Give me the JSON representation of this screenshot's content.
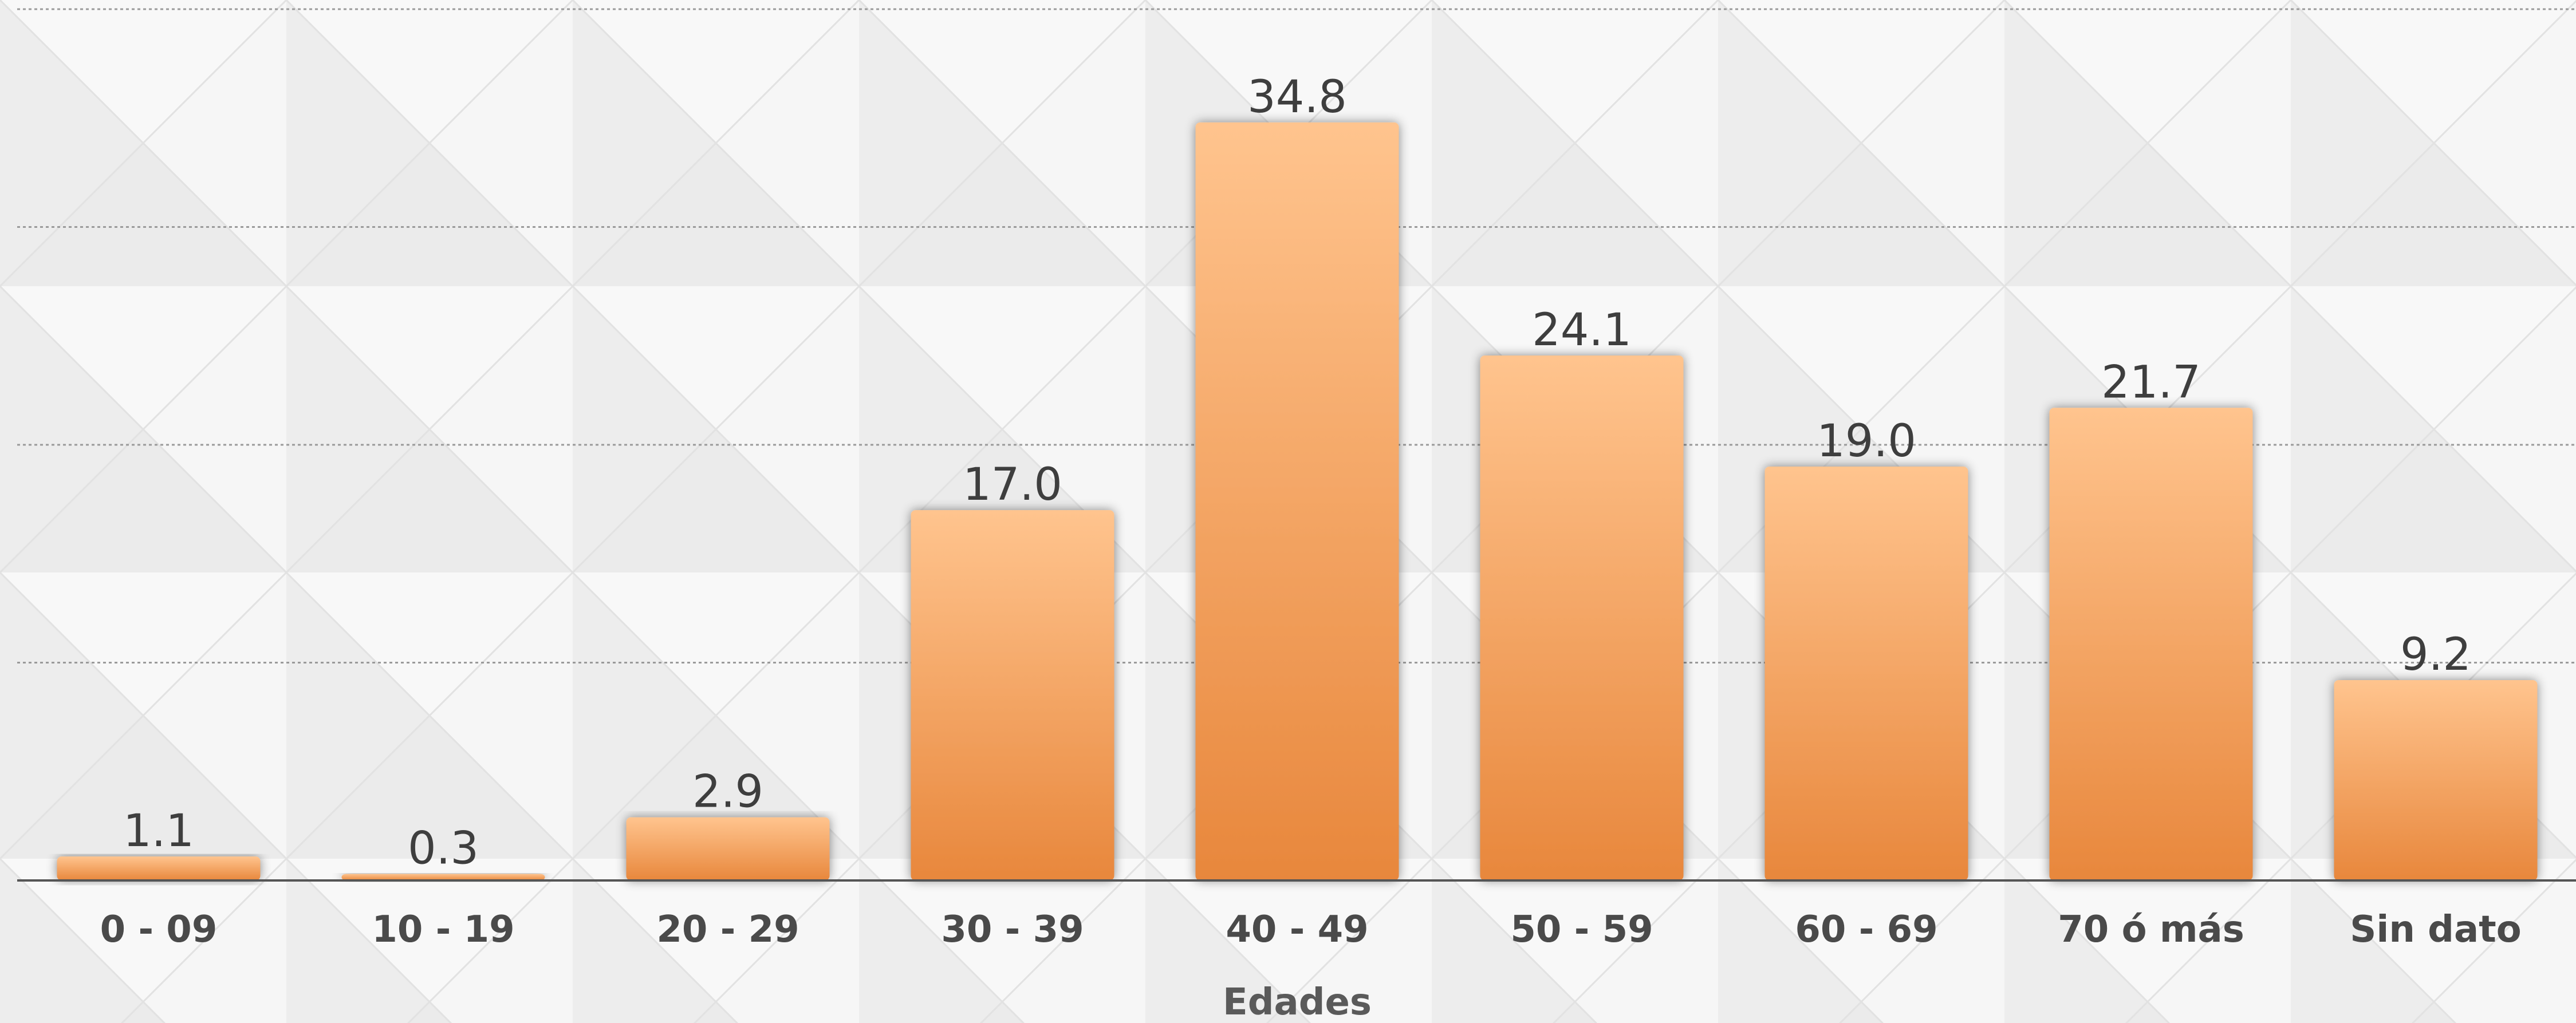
{
  "chart_data": {
    "type": "bar",
    "title": "",
    "xlabel": "Edades",
    "ylabel": "",
    "categories": [
      "0 - 09",
      "10 - 19",
      "20 - 29",
      "30 - 39",
      "40 - 49",
      "50 - 59",
      "60 - 69",
      "70 ó más",
      "Sin dato"
    ],
    "values": [
      1.1,
      0.3,
      2.9,
      17.0,
      34.8,
      24.1,
      19.0,
      21.7,
      9.2
    ],
    "value_labels": [
      "1.1",
      "0.3",
      "2.9",
      "17.0",
      "34.8",
      "24.1",
      "19.0",
      "21.7",
      "9.2"
    ],
    "ylim": [
      0,
      40
    ],
    "grid": true,
    "legend": "none",
    "colors": {
      "bar_top": "#ffc48e",
      "bar_bottom": "#e8873c",
      "grid": "#9a9a9a",
      "axis": "#555555",
      "background": "#f2f2f2"
    }
  }
}
